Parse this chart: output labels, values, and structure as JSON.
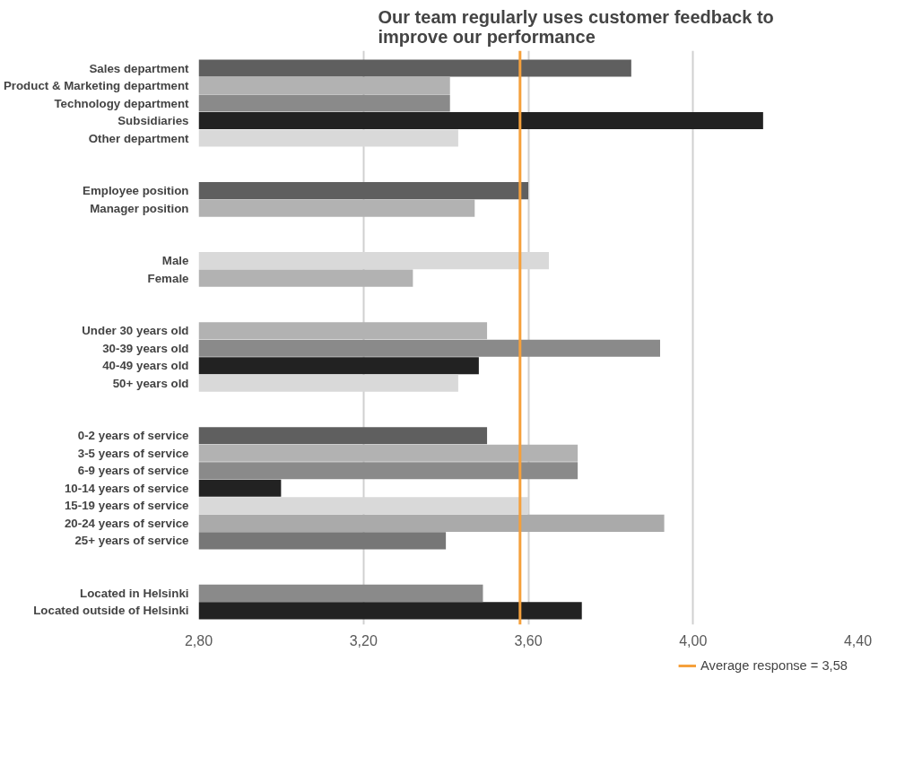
{
  "chart_data": {
    "type": "bar",
    "orientation": "horizontal",
    "title": "Our team regularly uses customer feedback to\nimprove our performance",
    "categories": [
      "Sales department",
      "Product & Marketing department",
      "Technology department",
      "Subsidiaries",
      "Other department",
      null,
      null,
      "Employee position",
      "Manager position",
      null,
      null,
      "Male",
      "Female",
      null,
      null,
      "Under 30 years old",
      "30-39 years old",
      "40-49 years old",
      "50+ years old",
      null,
      null,
      "0-2 years of service",
      "3-5 years of service",
      "6-9 years of service",
      "10-14 years of service",
      "15-19 years of service",
      "20-24 years of service",
      "25+ years of service",
      null,
      null,
      "Located in Helsinki",
      "Located outside of Helsinki"
    ],
    "values": [
      3.85,
      3.41,
      3.41,
      4.17,
      3.43,
      null,
      null,
      3.6,
      3.47,
      null,
      null,
      3.65,
      3.32,
      null,
      null,
      3.5,
      3.92,
      3.48,
      3.43,
      null,
      null,
      3.5,
      3.72,
      3.72,
      3.0,
      3.6,
      3.93,
      3.4,
      null,
      null,
      3.49,
      3.73
    ],
    "colors": [
      "#5f5f5f",
      "#b2b2b2",
      "#8a8a8a",
      "#222222",
      "#d9d9d9",
      null,
      null,
      "#5f5f5f",
      "#b2b2b2",
      null,
      null,
      "#d9d9d9",
      "#b2b2b2",
      null,
      null,
      "#b2b2b2",
      "#8a8a8a",
      "#222222",
      "#d9d9d9",
      null,
      null,
      "#5f5f5f",
      "#b2b2b2",
      "#8a8a8a",
      "#222222",
      "#d9d9d9",
      "#aaaaaa",
      "#777777",
      null,
      null,
      "#8a8a8a",
      "#222222"
    ],
    "xlim": [
      2.8,
      4.4
    ],
    "xticks": [
      {
        "value": 2.8,
        "label": "2,80"
      },
      {
        "value": 3.2,
        "label": "3,20"
      },
      {
        "value": 3.6,
        "label": "3,60"
      },
      {
        "value": 4.0,
        "label": "4,00"
      },
      {
        "value": 4.4,
        "label": "4,40"
      }
    ],
    "grid": "x",
    "legend": "bottom right",
    "ref_lines": [
      {
        "axis": "x",
        "value": 3.58,
        "label": "Average response = 3,58",
        "color": "#f5a03c"
      }
    ]
  }
}
